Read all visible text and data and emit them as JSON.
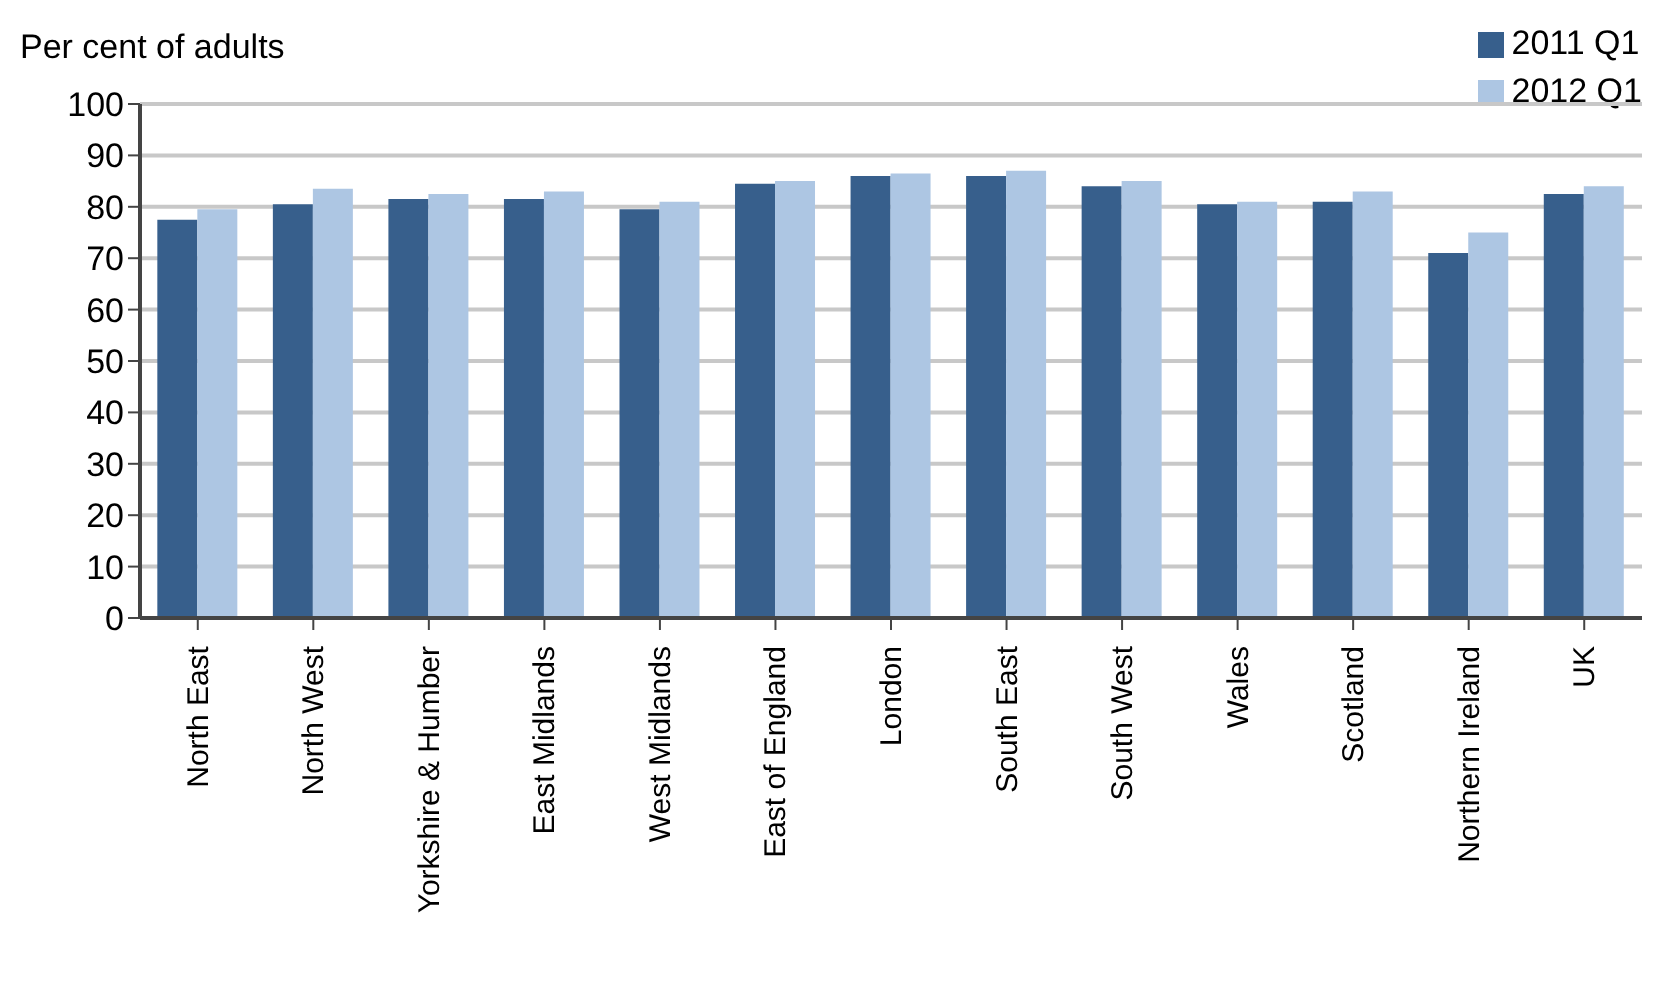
{
  "chart_data": {
    "type": "bar",
    "ylabel": "Per cent of adults",
    "categories": [
      "North East",
      "North West",
      "Yorkshire & Humber",
      "East Midlands",
      "West Midlands",
      "East of England",
      "London",
      "South East",
      "South West",
      "Wales",
      "Scotland",
      "Northern Ireland",
      "UK"
    ],
    "series": [
      {
        "name": "2011 Q1",
        "color": "#375f8c",
        "values": [
          77.5,
          80.5,
          81.5,
          81.5,
          79.5,
          84.5,
          86,
          86,
          84,
          80.5,
          81,
          71,
          82.5
        ]
      },
      {
        "name": "2012 Q1",
        "color": "#adc6e3",
        "values": [
          79.5,
          83.5,
          82.5,
          83,
          81,
          85,
          86.5,
          87,
          85,
          81,
          83,
          75,
          84
        ]
      }
    ],
    "ylim": [
      0,
      100
    ],
    "yticks": [
      0,
      10,
      20,
      30,
      40,
      50,
      60,
      70,
      80,
      90,
      100
    ],
    "grid": "y",
    "legend": "top right"
  }
}
